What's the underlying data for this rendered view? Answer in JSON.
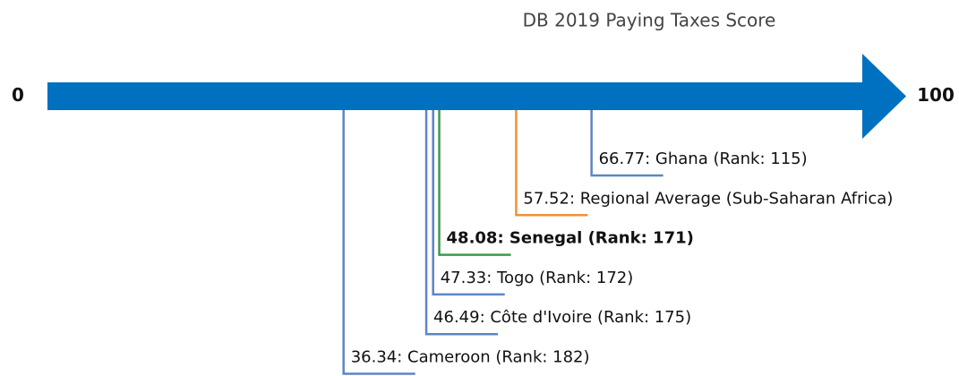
{
  "chart_data": {
    "type": "number-line",
    "title": "DB 2019 Paying Taxes Score",
    "xlim": [
      0,
      100
    ],
    "xticks": [
      0,
      100
    ],
    "axis_color": "#0070c0",
    "values": [
      66.77,
      57.52,
      48.08,
      47.33,
      46.49,
      36.34
    ],
    "value_labels": [
      "66.77: Ghana (Rank: 115)",
      "57.52: Regional Average (Sub-Saharan Africa)",
      "48.08: Senegal (Rank: 171)",
      "47.33: Togo (Rank: 172)",
      "46.49: Côte d'Ivoire (Rank: 175)",
      "36.34: Cameroon (Rank: 182)"
    ],
    "colors": [
      "#5b86c5",
      "#f0913a",
      "#3c9a4c",
      "#5b86c5",
      "#5b86c5",
      "#5b86c5"
    ],
    "highlight": 2
  }
}
